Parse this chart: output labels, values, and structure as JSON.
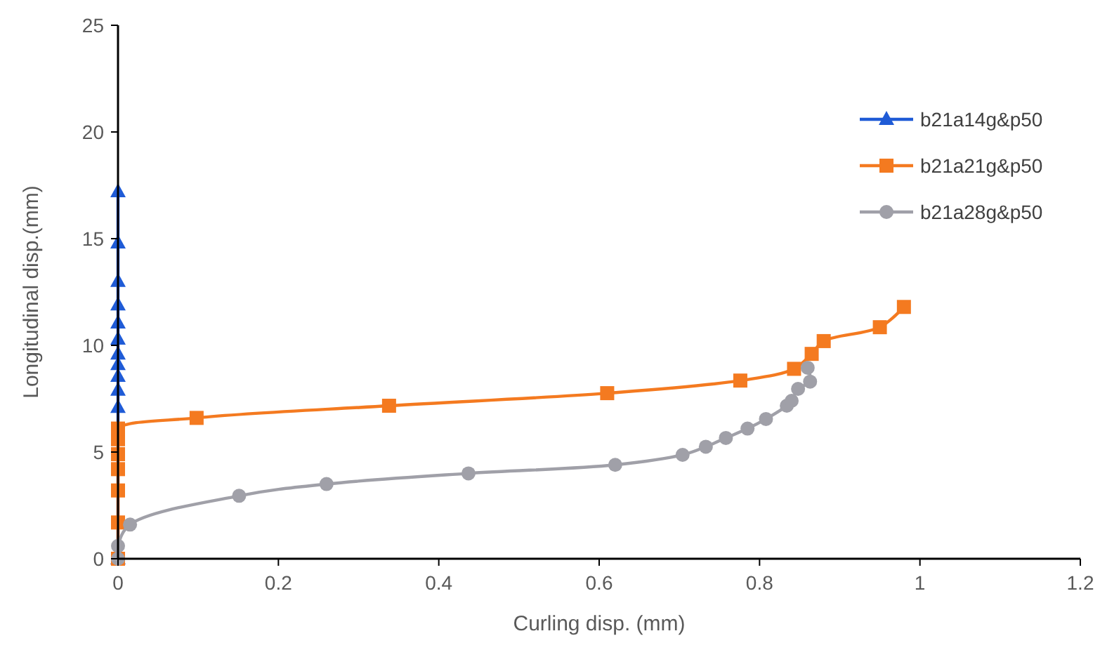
{
  "chart_data": {
    "type": "line",
    "xlabel": "Curling disp. (mm)",
    "ylabel": "Longitudinal disp.(mm)",
    "xlim": [
      0,
      1.2
    ],
    "xticks": [
      0,
      0.2,
      0.4,
      0.6,
      0.8,
      1,
      1.2
    ],
    "ylim": [
      0,
      25
    ],
    "yticks": [
      0,
      5,
      10,
      15,
      20,
      25
    ],
    "grid": false,
    "legend": "right",
    "series": [
      {
        "name": "b21a14g&p50",
        "color": "#1f5bd6",
        "marker": "triangle",
        "x": [
          0,
          0,
          0,
          0,
          0,
          0,
          0,
          0,
          0,
          0,
          0,
          0
        ],
        "values": [
          0,
          7.1,
          7.9,
          8.55,
          9.1,
          9.6,
          10.3,
          11.05,
          11.9,
          13.0,
          14.8,
          17.2
        ]
      },
      {
        "name": "b21a21g&p50",
        "color": "#f47a20",
        "marker": "square",
        "x": [
          0,
          0,
          0,
          0,
          0,
          0,
          0,
          0.098,
          0.338,
          0.61,
          0.776,
          0.843,
          0.865,
          0.88,
          0.95,
          0.98
        ],
        "values": [
          0,
          1.7,
          3.2,
          4.2,
          4.9,
          5.6,
          6.1,
          6.6,
          7.17,
          7.76,
          8.35,
          8.9,
          9.6,
          10.2,
          10.85,
          11.8
        ]
      },
      {
        "name": "b21a28g&p50",
        "color": "#a0a0a8",
        "marker": "circle",
        "x": [
          0,
          0,
          0.015,
          0.151,
          0.26,
          0.437,
          0.62,
          0.704,
          0.733,
          0.758,
          0.785,
          0.808,
          0.834,
          0.84,
          0.848,
          0.863,
          0.86
        ],
        "values": [
          0,
          0.6,
          1.6,
          2.95,
          3.5,
          4.0,
          4.4,
          4.87,
          5.25,
          5.66,
          6.1,
          6.55,
          7.17,
          7.4,
          7.96,
          8.3,
          8.95
        ]
      }
    ]
  }
}
